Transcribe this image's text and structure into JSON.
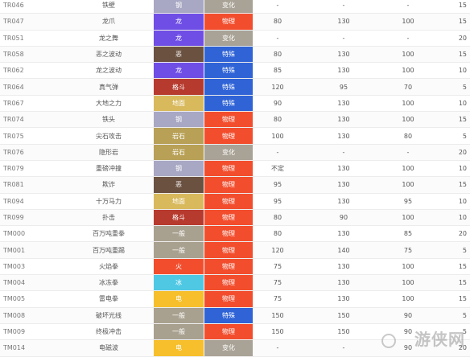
{
  "moves": [
    {
      "no": "TR046",
      "name": "铁壁",
      "type": "钢",
      "type_color": "#a8a8c4",
      "category": "变化",
      "category_color": "#a9a296",
      "power": "-",
      "accuracy": "-",
      "pp": "-",
      "gen": "15"
    },
    {
      "no": "TR047",
      "name": "龙爪",
      "type": "龙",
      "type_color": "#6f4ee6",
      "category": "物理",
      "category_color": "#f24e2e",
      "power": "80",
      "accuracy": "130",
      "pp": "100",
      "gen": "15"
    },
    {
      "no": "TR051",
      "name": "龙之舞",
      "type": "龙",
      "type_color": "#6f4ee6",
      "category": "变化",
      "category_color": "#a9a296",
      "power": "-",
      "accuracy": "-",
      "pp": "-",
      "gen": "20"
    },
    {
      "no": "TR058",
      "name": "恶之波动",
      "type": "恶",
      "type_color": "#6b5140",
      "category": "特殊",
      "category_color": "#2f63d6",
      "power": "80",
      "accuracy": "130",
      "pp": "100",
      "gen": "15"
    },
    {
      "no": "TR062",
      "name": "龙之波动",
      "type": "龙",
      "type_color": "#6f4ee6",
      "category": "特殊",
      "category_color": "#2f63d6",
      "power": "85",
      "accuracy": "130",
      "pp": "100",
      "gen": "10"
    },
    {
      "no": "TR064",
      "name": "真气弹",
      "type": "格斗",
      "type_color": "#b73a2e",
      "category": "特殊",
      "category_color": "#2f63d6",
      "power": "120",
      "accuracy": "95",
      "pp": "70",
      "gen": "5"
    },
    {
      "no": "TR067",
      "name": "大地之力",
      "type": "地面",
      "type_color": "#d8b95c",
      "category": "特殊",
      "category_color": "#2f63d6",
      "power": "90",
      "accuracy": "130",
      "pp": "100",
      "gen": "10"
    },
    {
      "no": "TR074",
      "name": "铁头",
      "type": "钢",
      "type_color": "#a8a8c4",
      "category": "物理",
      "category_color": "#f24e2e",
      "power": "80",
      "accuracy": "130",
      "pp": "100",
      "gen": "15"
    },
    {
      "no": "TR075",
      "name": "尖石攻击",
      "type": "岩石",
      "type_color": "#b8a157",
      "category": "物理",
      "category_color": "#f24e2e",
      "power": "100",
      "accuracy": "130",
      "pp": "80",
      "gen": "5"
    },
    {
      "no": "TR076",
      "name": "隐形岩",
      "type": "岩石",
      "type_color": "#b8a157",
      "category": "变化",
      "category_color": "#a9a296",
      "power": "-",
      "accuracy": "-",
      "pp": "-",
      "gen": "20"
    },
    {
      "no": "TR079",
      "name": "重磅冲撞",
      "type": "钢",
      "type_color": "#a8a8c4",
      "category": "物理",
      "category_color": "#f24e2e",
      "power": "不定",
      "accuracy": "130",
      "pp": "100",
      "gen": "10"
    },
    {
      "no": "TR081",
      "name": "欺诈",
      "type": "恶",
      "type_color": "#6b5140",
      "category": "物理",
      "category_color": "#f24e2e",
      "power": "95",
      "accuracy": "130",
      "pp": "100",
      "gen": "15"
    },
    {
      "no": "TR094",
      "name": "十万马力",
      "type": "地面",
      "type_color": "#d8b95c",
      "category": "物理",
      "category_color": "#f24e2e",
      "power": "95",
      "accuracy": "130",
      "pp": "95",
      "gen": "10"
    },
    {
      "no": "TR099",
      "name": "扑击",
      "type": "格斗",
      "type_color": "#b73a2e",
      "category": "物理",
      "category_color": "#f24e2e",
      "power": "80",
      "accuracy": "90",
      "pp": "100",
      "gen": "10"
    },
    {
      "no": "TM000",
      "name": "百万吨重拳",
      "type": "一般",
      "type_color": "#a9a18f",
      "category": "物理",
      "category_color": "#f24e2e",
      "power": "80",
      "accuracy": "130",
      "pp": "85",
      "gen": "20"
    },
    {
      "no": "TM001",
      "name": "百万吨重踢",
      "type": "一般",
      "type_color": "#a9a18f",
      "category": "物理",
      "category_color": "#f24e2e",
      "power": "120",
      "accuracy": "140",
      "pp": "75",
      "gen": "5"
    },
    {
      "no": "TM003",
      "name": "火焰拳",
      "type": "火",
      "type_color": "#f24e2e",
      "category": "物理",
      "category_color": "#f24e2e",
      "power": "75",
      "accuracy": "130",
      "pp": "100",
      "gen": "15"
    },
    {
      "no": "TM004",
      "name": "冰冻拳",
      "type": "冰",
      "type_color": "#4fc8e4",
      "category": "物理",
      "category_color": "#f24e2e",
      "power": "75",
      "accuracy": "130",
      "pp": "100",
      "gen": "15"
    },
    {
      "no": "TM005",
      "name": "雷电拳",
      "type": "电",
      "type_color": "#f6bf2b",
      "category": "物理",
      "category_color": "#f24e2e",
      "power": "75",
      "accuracy": "130",
      "pp": "100",
      "gen": "15"
    },
    {
      "no": "TM008",
      "name": "破坏光线",
      "type": "一般",
      "type_color": "#a9a18f",
      "category": "特殊",
      "category_color": "#2f63d6",
      "power": "150",
      "accuracy": "150",
      "pp": "90",
      "gen": "5"
    },
    {
      "no": "TM009",
      "name": "终极冲击",
      "type": "一般",
      "type_color": "#a9a18f",
      "category": "物理",
      "category_color": "#f24e2e",
      "power": "150",
      "accuracy": "150",
      "pp": "90",
      "gen": "5"
    },
    {
      "no": "TM014",
      "name": "电磁波",
      "type": "电",
      "type_color": "#f6bf2b",
      "category": "变化",
      "category_color": "#a9a296",
      "power": "-",
      "accuracy": "-",
      "pp": "90",
      "gen": "20"
    }
  ],
  "watermark": {
    "text": "游侠网",
    "icon": "yx-logo-icon"
  }
}
